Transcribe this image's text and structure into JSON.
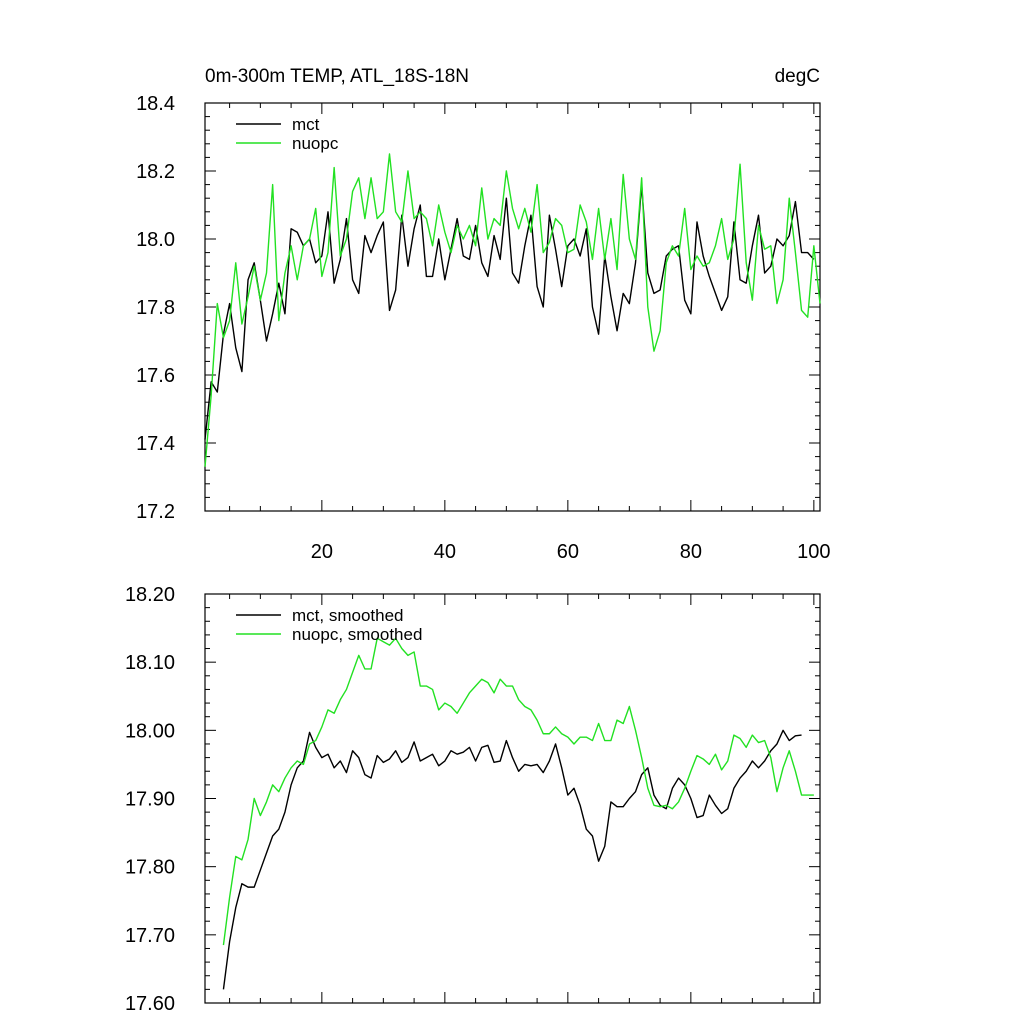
{
  "chart_data": [
    {
      "type": "line",
      "title": "0m-300m TEMP, ATL_18S-18N",
      "units": "degC",
      "xlim": [
        1,
        101
      ],
      "ylim": [
        17.2,
        18.4
      ],
      "xticks": [
        20,
        40,
        60,
        80,
        100
      ],
      "xtick_labels": [
        "20",
        "40",
        "60",
        "80",
        "100"
      ],
      "yticks": [
        17.2,
        17.4,
        17.6,
        17.8,
        18.0,
        18.2,
        18.4
      ],
      "ytick_labels": [
        "17.2",
        "17.4",
        "17.6",
        "17.8",
        "18.0",
        "18.2",
        "18.4"
      ],
      "series": [
        {
          "name": "mct",
          "color": "#000000",
          "x_start": 1,
          "values": [
            17.41,
            17.58,
            17.55,
            17.72,
            17.81,
            17.68,
            17.61,
            17.88,
            17.93,
            17.82,
            17.7,
            17.78,
            17.87,
            17.78,
            18.03,
            18.02,
            17.98,
            18.0,
            17.93,
            17.95,
            18.08,
            17.87,
            17.94,
            18.06,
            17.88,
            17.84,
            18.01,
            17.96,
            18.01,
            18.05,
            17.79,
            17.85,
            18.07,
            17.92,
            18.03,
            18.1,
            17.89,
            17.89,
            18.0,
            17.88,
            17.97,
            18.06,
            17.95,
            17.94,
            18.04,
            17.93,
            17.89,
            18.01,
            17.94,
            18.12,
            17.9,
            17.87,
            17.98,
            18.07,
            17.86,
            17.8,
            18.07,
            17.97,
            17.86,
            17.98,
            18.0,
            17.95,
            18.03,
            17.8,
            17.72,
            17.95,
            17.83,
            17.73,
            17.84,
            17.81,
            17.93,
            18.16,
            17.9,
            17.84,
            17.85,
            17.95,
            17.97,
            17.98,
            17.82,
            17.78,
            18.05,
            17.95,
            17.89,
            17.84,
            17.79,
            17.83,
            18.05,
            17.88,
            17.87,
            17.98,
            18.07,
            17.9,
            17.92,
            18.0,
            17.98,
            18.01,
            18.11,
            17.96,
            17.96,
            17.94
          ]
        },
        {
          "name": "nuopc",
          "color": "#22e122",
          "x_start": 1,
          "values": [
            17.33,
            17.54,
            17.81,
            17.71,
            17.76,
            17.93,
            17.75,
            17.83,
            17.92,
            17.82,
            17.9,
            18.16,
            17.76,
            17.9,
            17.98,
            17.88,
            17.98,
            18.0,
            18.09,
            17.89,
            17.96,
            18.21,
            17.95,
            18.0,
            18.14,
            18.18,
            18.06,
            18.18,
            18.06,
            18.08,
            18.25,
            18.08,
            18.05,
            18.2,
            18.06,
            18.08,
            18.06,
            17.98,
            18.1,
            18.02,
            17.96,
            18.04,
            18.0,
            18.04,
            17.98,
            18.15,
            18.0,
            18.06,
            18.04,
            18.2,
            18.09,
            18.03,
            18.09,
            18.02,
            18.16,
            17.96,
            17.99,
            18.06,
            18.04,
            17.96,
            17.97,
            18.1,
            18.05,
            17.94,
            18.09,
            17.94,
            18.06,
            17.91,
            18.19,
            18.0,
            17.94,
            18.18,
            17.8,
            17.67,
            17.73,
            17.93,
            17.98,
            17.95,
            18.09,
            17.91,
            17.95,
            17.92,
            17.93,
            17.98,
            18.06,
            17.94,
            18.0,
            18.22,
            17.93,
            17.82,
            18.04,
            17.97,
            17.98,
            17.81,
            17.88,
            18.12,
            17.96,
            17.79,
            17.77,
            17.98,
            17.81
          ]
        }
      ]
    },
    {
      "type": "line",
      "xlim": [
        1,
        101
      ],
      "ylim": [
        17.6,
        18.2
      ],
      "xticks": [
        20,
        40,
        60,
        80,
        100
      ],
      "yticks": [
        17.6,
        17.7,
        17.8,
        17.9,
        18.0,
        18.1,
        18.2
      ],
      "ytick_labels": [
        "17.60",
        "17.70",
        "17.80",
        "17.90",
        "18.00",
        "18.10",
        "18.20"
      ],
      "series": [
        {
          "name": "mct, smoothed",
          "color": "#000000",
          "x_start": 4,
          "values": [
            17.62,
            17.69,
            17.74,
            17.775,
            17.77,
            17.77,
            17.795,
            17.82,
            17.845,
            17.855,
            17.88,
            17.92,
            17.945,
            17.955,
            17.997,
            17.975,
            17.96,
            17.965,
            17.945,
            17.955,
            17.938,
            17.97,
            17.96,
            17.935,
            17.93,
            17.963,
            17.953,
            17.958,
            17.97,
            17.953,
            17.96,
            17.983,
            17.955,
            17.96,
            17.965,
            17.948,
            17.955,
            17.97,
            17.965,
            17.968,
            17.975,
            17.955,
            17.975,
            17.978,
            17.953,
            17.955,
            17.985,
            17.96,
            17.94,
            17.95,
            17.948,
            17.95,
            17.938,
            17.955,
            17.98,
            17.945,
            17.905,
            17.915,
            17.89,
            17.855,
            17.845,
            17.808,
            17.83,
            17.895,
            17.888,
            17.888,
            17.9,
            17.91,
            17.935,
            17.945,
            17.905,
            17.89,
            17.885,
            17.915,
            17.93,
            17.92,
            17.9,
            17.872,
            17.875,
            17.905,
            17.89,
            17.878,
            17.885,
            17.915,
            17.93,
            17.94,
            17.955,
            17.945,
            17.955,
            17.97,
            17.98,
            18.0,
            17.985,
            17.992,
            17.993
          ]
        },
        {
          "name": "nuopc, smoothed",
          "color": "#22e122",
          "x_start": 4,
          "values": [
            17.685,
            17.755,
            17.815,
            17.81,
            17.84,
            17.9,
            17.875,
            17.895,
            17.92,
            17.91,
            17.93,
            17.945,
            17.955,
            17.95,
            17.98,
            17.985,
            18.005,
            18.03,
            18.025,
            18.045,
            18.06,
            18.085,
            18.11,
            18.09,
            18.09,
            18.135,
            18.13,
            18.125,
            18.135,
            18.12,
            18.11,
            18.115,
            18.065,
            18.065,
            18.06,
            18.03,
            18.04,
            18.035,
            18.025,
            18.04,
            18.055,
            18.065,
            18.075,
            18.07,
            18.055,
            18.075,
            18.065,
            18.065,
            18.045,
            18.035,
            18.03,
            18.015,
            17.995,
            17.995,
            18.005,
            17.995,
            17.99,
            17.98,
            17.99,
            17.99,
            17.985,
            18.01,
            17.985,
            17.985,
            18.015,
            18.01,
            18.035,
            18.0,
            17.96,
            17.915,
            17.89,
            17.888,
            17.89,
            17.885,
            17.895,
            17.915,
            17.94,
            17.963,
            17.958,
            17.95,
            17.965,
            17.942,
            17.955,
            17.993,
            17.988,
            17.975,
            17.993,
            17.982,
            17.985,
            17.96,
            17.91,
            17.945,
            17.97,
            17.94,
            17.905,
            17.905,
            17.905
          ]
        }
      ]
    }
  ]
}
